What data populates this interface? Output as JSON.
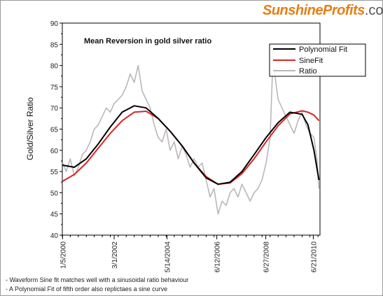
{
  "logo": {
    "brand": "SunshineProfits",
    "tld": ".com"
  },
  "notes": [
    "- Waveform Sine fit matches well with a sinusoidal ratio behaviour",
    "- A Polynomial Fit of fifth order also replictaes a sine curve"
  ],
  "colors": {
    "polynomial": "#000000",
    "sine": "#dd2222",
    "ratio": "#b8b8b8"
  },
  "chart_data": {
    "type": "line",
    "title": "Mean Reversion in gold silver ratio",
    "xlabel": "",
    "ylabel": "Gold/Silver Ratio",
    "ylim": [
      40,
      90
    ],
    "yticks": [
      40,
      45,
      50,
      55,
      60,
      65,
      70,
      75,
      80,
      85,
      90
    ],
    "xlim": [
      "2000-01-01",
      "2010-10-01"
    ],
    "xticks": [
      {
        "date": "2000-01-05",
        "label": "1/5/2000"
      },
      {
        "date": "2002-03-01",
        "label": "3/1/2002"
      },
      {
        "date": "2004-05-14",
        "label": "5/14/2004"
      },
      {
        "date": "2006-06-12",
        "label": "6/12/2006"
      },
      {
        "date": "2008-06-27",
        "label": "6/27/2008"
      },
      {
        "date": "2010-06-21",
        "label": "6/21/2010"
      }
    ],
    "legend_position": "top-right",
    "grid": false,
    "series": [
      {
        "name": "Polynomial Fit",
        "x": [
          "2000-01-05",
          "2000-07-01",
          "2001-01-01",
          "2001-07-01",
          "2002-01-01",
          "2002-07-01",
          "2003-01-01",
          "2003-07-01",
          "2004-01-01",
          "2004-07-01",
          "2005-01-01",
          "2005-07-01",
          "2006-01-01",
          "2006-07-01",
          "2007-01-01",
          "2007-07-01",
          "2008-01-01",
          "2008-07-01",
          "2009-01-01",
          "2009-07-01",
          "2010-01-01",
          "2010-04-01",
          "2010-07-01",
          "2010-09-15"
        ],
        "values": [
          56.5,
          56.0,
          58.0,
          61.5,
          65.5,
          69.0,
          70.5,
          70.0,
          67.5,
          64.5,
          61.0,
          57.0,
          53.5,
          52.0,
          52.5,
          55.0,
          59.0,
          63.0,
          66.5,
          69.0,
          68.5,
          66.0,
          60.0,
          53.0
        ]
      },
      {
        "name": "SineFit",
        "x": [
          "2000-01-05",
          "2000-07-01",
          "2001-01-01",
          "2001-07-01",
          "2002-01-01",
          "2002-07-01",
          "2003-01-01",
          "2003-07-01",
          "2004-01-01",
          "2004-07-01",
          "2005-01-01",
          "2005-07-01",
          "2006-01-01",
          "2006-07-01",
          "2007-01-01",
          "2007-07-01",
          "2008-01-01",
          "2008-07-01",
          "2009-01-01",
          "2009-07-01",
          "2010-01-01",
          "2010-04-01",
          "2010-07-01",
          "2010-09-15"
        ],
        "values": [
          52.7,
          54.3,
          57.0,
          60.5,
          64.0,
          67.0,
          69.0,
          69.2,
          67.5,
          64.5,
          61.0,
          57.0,
          53.8,
          52.0,
          52.3,
          54.5,
          58.0,
          62.0,
          65.8,
          68.6,
          69.3,
          69.0,
          68.3,
          67.0
        ]
      },
      {
        "name": "Ratio",
        "x": [
          "2000-01-05",
          "2000-03-01",
          "2000-05-01",
          "2000-07-01",
          "2000-09-01",
          "2000-11-01",
          "2001-01-01",
          "2001-03-01",
          "2001-05-01",
          "2001-07-01",
          "2001-09-01",
          "2001-11-01",
          "2002-01-01",
          "2002-03-01",
          "2002-05-01",
          "2002-07-01",
          "2002-09-01",
          "2002-11-01",
          "2003-01-01",
          "2003-03-01",
          "2003-05-01",
          "2003-07-01",
          "2003-09-01",
          "2003-11-01",
          "2004-01-01",
          "2004-03-01",
          "2004-05-01",
          "2004-07-01",
          "2004-09-01",
          "2004-11-01",
          "2005-01-01",
          "2005-03-01",
          "2005-05-01",
          "2005-07-01",
          "2005-09-01",
          "2005-11-01",
          "2006-01-01",
          "2006-03-01",
          "2006-05-01",
          "2006-07-01",
          "2006-09-01",
          "2006-11-01",
          "2007-01-01",
          "2007-03-01",
          "2007-05-01",
          "2007-07-01",
          "2007-09-01",
          "2007-11-01",
          "2008-01-01",
          "2008-03-01",
          "2008-05-01",
          "2008-07-01",
          "2008-09-01",
          "2008-10-15",
          "2008-11-01",
          "2009-01-01",
          "2009-03-01",
          "2009-05-01",
          "2009-07-01",
          "2009-09-01",
          "2009-11-01",
          "2010-01-01",
          "2010-03-01",
          "2010-05-01",
          "2010-07-01",
          "2010-08-15",
          "2010-09-15"
        ],
        "values": [
          57,
          55,
          58,
          54,
          56,
          59,
          60,
          62,
          65,
          66,
          68,
          70,
          69,
          71,
          72,
          73,
          75,
          78,
          76,
          80,
          74,
          72,
          70,
          66,
          63,
          62,
          65,
          60,
          62,
          58,
          61,
          59,
          56,
          58,
          56,
          57,
          53,
          49,
          51,
          45,
          48,
          47,
          50,
          51,
          49,
          52,
          50,
          48,
          50,
          51,
          53,
          57,
          63,
          82,
          79,
          72,
          70,
          68,
          66,
          64,
          67,
          69,
          66,
          64,
          63,
          58,
          51
        ]
      }
    ]
  }
}
